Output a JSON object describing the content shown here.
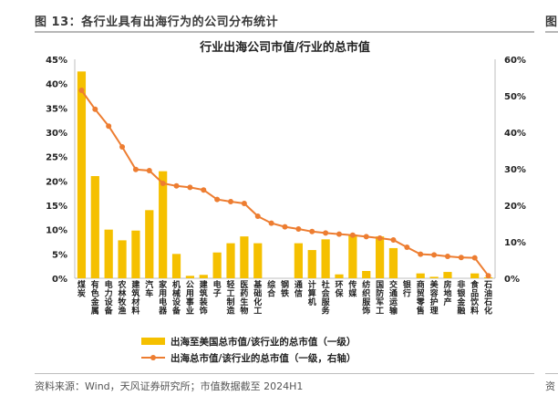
{
  "header": {
    "title": "图 13：各行业具有出海行为的公司分布统计",
    "right_fragment": "图"
  },
  "footer": {
    "source": "资料来源：Wind，天风证券研究所；市值数据截至 2024H1",
    "right_fragment": "资"
  },
  "chart_data": {
    "type": "bar",
    "title": "行业出海公司市值/行业的总市值",
    "categories": [
      "煤炭",
      "有色金属",
      "电力设备",
      "农林牧渔",
      "建筑材料",
      "汽车",
      "家用电器",
      "机械设备",
      "公用事业",
      "建筑装饰",
      "电子",
      "轻工制造",
      "医药生物",
      "基础化工",
      "综合",
      "钢铁",
      "通信",
      "计算机",
      "社会服务",
      "环保",
      "传媒",
      "纺织服饰",
      "国防军工",
      "交通运输",
      "银行",
      "商贸零售",
      "美容护理",
      "房地产",
      "非银金融",
      "食品饮料",
      "石油石化"
    ],
    "series": [
      {
        "name": "出海至美国总市值/该行业的总市值（一级）",
        "type": "bar",
        "axis": "left",
        "color": "#F5C000",
        "values": [
          42.5,
          21.0,
          10.0,
          7.8,
          9.8,
          14.0,
          22.0,
          5.0,
          0.5,
          0.7,
          5.3,
          7.2,
          8.6,
          7.2,
          0,
          0,
          7.2,
          5.8,
          8.0,
          0.8,
          9.0,
          1.5,
          8.6,
          6.2,
          0,
          1.0,
          0.3,
          1.3,
          0,
          1.0,
          0.2
        ]
      },
      {
        "name": "出海总市值/该行业的总市值（一级，右轴）",
        "type": "line",
        "axis": "right",
        "color": "#ED7D31",
        "values": [
          51.5,
          46.3,
          41.7,
          36.0,
          29.8,
          29.5,
          26.0,
          25.3,
          24.9,
          24.2,
          21.6,
          21.0,
          20.5,
          17.0,
          15.1,
          14.1,
          13.5,
          12.8,
          12.4,
          12.1,
          11.8,
          11.4,
          11.0,
          10.5,
          8.5,
          6.6,
          6.4,
          6.0,
          5.7,
          5.6,
          0.7
        ]
      }
    ],
    "ylim_left": [
      0,
      45
    ],
    "ylim_right": [
      0,
      60
    ],
    "yticks_left": [
      "0%",
      "5%",
      "10%",
      "15%",
      "20%",
      "25%",
      "30%",
      "35%",
      "40%",
      "45%"
    ],
    "yticks_right": [
      "0%",
      "10%",
      "20%",
      "30%",
      "40%",
      "50%",
      "60%"
    ],
    "grid": false,
    "legend_position": "bottom"
  }
}
